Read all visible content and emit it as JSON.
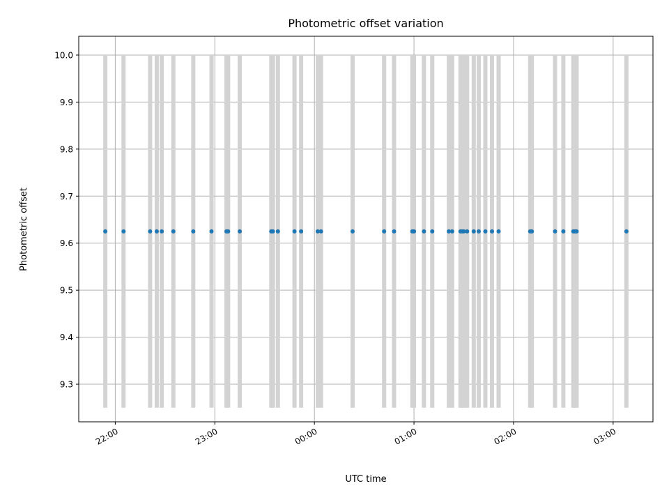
{
  "chart_data": {
    "type": "scatter",
    "title": "Photometric offset variation",
    "xlabel": "UTC time",
    "ylabel": "Photometric offset",
    "x_axis_kind": "time",
    "xlim": [
      "21:38",
      "03:24"
    ],
    "ylim": [
      9.22,
      10.04
    ],
    "grid": true,
    "y_ticks": [
      9.3,
      9.4,
      9.5,
      9.6,
      9.7,
      9.8,
      9.9,
      10.0
    ],
    "y_tick_labels": [
      "9.3",
      "9.4",
      "9.5",
      "9.6",
      "9.7",
      "9.8",
      "9.9",
      "10.0"
    ],
    "x_ticks": [
      "22:00",
      "23:00",
      "00:00",
      "01:00",
      "02:00",
      "03:00"
    ],
    "x_tick_labels": [
      "22:00",
      "23:00",
      "00:00",
      "01:00",
      "02:00",
      "03:00"
    ],
    "band_range": [
      9.25,
      10.0
    ],
    "band_color": "#d3d3d3",
    "point_color": "#1f77b4",
    "series": [
      {
        "x": [
          "21:54",
          "22:05",
          "22:21",
          "22:25",
          "22:28",
          "22:35",
          "22:47",
          "22:58",
          "23:07",
          "23:08",
          "23:15",
          "23:34",
          "23:35",
          "23:38",
          "23:48",
          "23:52",
          "00:02",
          "00:04",
          "00:23",
          "00:42",
          "00:48",
          "00:59",
          "01:00",
          "01:06",
          "01:11",
          "01:21",
          "01:23",
          "01:28",
          "01:29",
          "01:30",
          "01:32",
          "01:36",
          "01:39",
          "01:43",
          "01:47",
          "01:51",
          "02:10",
          "02:11",
          "02:25",
          "02:30",
          "02:36",
          "02:37",
          "02:38",
          "03:08"
        ],
        "y": [
          9.625,
          9.625,
          9.625,
          9.625,
          9.625,
          9.625,
          9.625,
          9.625,
          9.625,
          9.625,
          9.625,
          9.625,
          9.625,
          9.625,
          9.625,
          9.625,
          9.625,
          9.625,
          9.625,
          9.625,
          9.625,
          9.625,
          9.625,
          9.625,
          9.625,
          9.625,
          9.625,
          9.625,
          9.625,
          9.625,
          9.625,
          9.625,
          9.625,
          9.625,
          9.625,
          9.625,
          9.625,
          9.625,
          9.625,
          9.625,
          9.625,
          9.625,
          9.625,
          9.625
        ]
      }
    ]
  }
}
